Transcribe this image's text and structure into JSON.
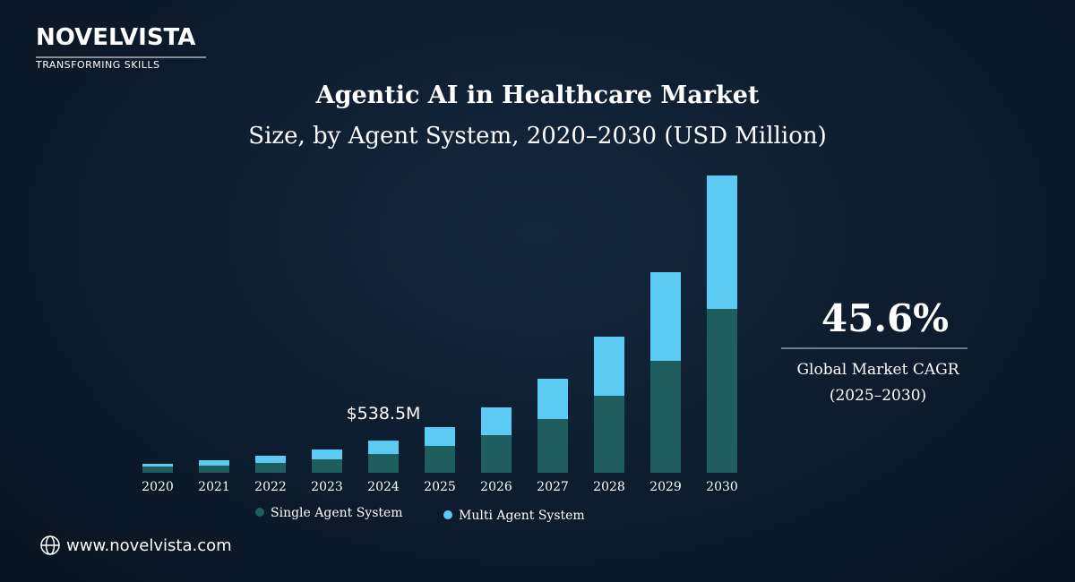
{
  "brand": {
    "name": "NOVELVISTA",
    "tagline": "TRANSFORMING SKILLS"
  },
  "chart_data": {
    "type": "stacked_bar",
    "title": "Agentic AI in Healthcare Market",
    "subtitle": "Size, by Agent System, 2020–2030 (USD Million)",
    "categories": [
      "2020",
      "2021",
      "2022",
      "2023",
      "2024",
      "2025",
      "2026",
      "2027",
      "2028",
      "2029",
      "2030"
    ],
    "series": [
      {
        "name": "Single Agent System",
        "color": "#1f5e5f",
        "values": [
          105,
          120,
          165,
          225,
          314,
          450,
          630,
          900,
          1290,
          1875,
          2745
        ]
      },
      {
        "name": "Multi Agent System",
        "color": "#5ccbf3",
        "values": [
          45,
          90,
          120,
          165,
          224.5,
          315,
          465,
          675,
          990,
          1485,
          2235
        ]
      }
    ],
    "annotation": "$538.5M"
  },
  "highlight": {
    "value": "45.6%",
    "label": "Global Market CAGR",
    "period": "(2025–2030)"
  },
  "footer": {
    "url": "www.novelvista.com"
  }
}
